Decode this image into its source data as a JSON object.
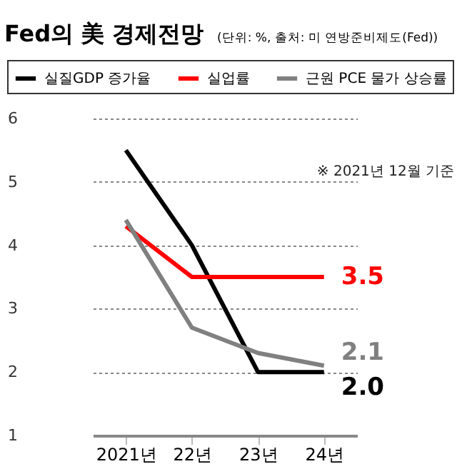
{
  "chart_data": {
    "type": "line",
    "title": "Fed의 美 경제전망",
    "subtitle": "(단위: %, 출처: 미 연방준비제도(Fed))",
    "categories": [
      "2021년",
      "22년",
      "23년",
      "24년"
    ],
    "series": [
      {
        "name": "실질GDP 증가율",
        "color": "#000000",
        "values": [
          5.5,
          4.0,
          2.0,
          2.0
        ],
        "value_labels": [
          null,
          null,
          null,
          "2.0"
        ]
      },
      {
        "name": "실업률",
        "color": "#ff0000",
        "values": [
          4.3,
          3.5,
          3.5,
          3.5
        ],
        "value_labels": [
          null,
          null,
          null,
          "3.5"
        ]
      },
      {
        "name": "근원 PCE 물가 상승률",
        "color": "#808080",
        "values": [
          4.4,
          2.7,
          2.3,
          2.1
        ],
        "value_labels": [
          null,
          null,
          null,
          "2.1"
        ]
      }
    ],
    "annotations": [
      "※ 2021년 12월 기준"
    ],
    "ylim": [
      1,
      6
    ],
    "yticks": [
      1,
      2,
      3,
      4,
      5,
      6
    ],
    "grid": "y",
    "legend": "top",
    "marker": "none",
    "line_style": "solid"
  }
}
